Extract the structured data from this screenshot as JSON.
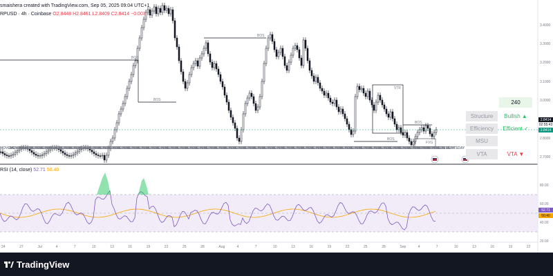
{
  "header": {
    "title": "smaishera created with TradingView.com, Sep 05, 2025 09:04 UTC+1",
    "symbol": "RPUSD · 4h · Coinbase",
    "ohlc": "O2.8448 H2.8461 L2.8409 C2.8414 −0.003"
  },
  "price_axis": {
    "labels": [
      "3.4000",
      "3.3000",
      "3.2000",
      "3.1000",
      "3.0000",
      "2.9000",
      "2.8000",
      "2.7000"
    ],
    "last_price": "2.8414",
    "countdown": "02:55:43",
    "last_price2": "2.8414"
  },
  "time_axis": {
    "labels": [
      "24",
      "27",
      "Jul",
      "4",
      "7",
      "10",
      "13",
      "16",
      "19",
      "22",
      "25",
      "28",
      "Aug",
      "4",
      "7",
      "10",
      "13",
      "16",
      "19",
      "22",
      "25",
      "28",
      "Sep",
      "4",
      "7",
      "10",
      "13",
      "16",
      "19",
      "22"
    ]
  },
  "annotations": {
    "bos_labels": [
      "BOS",
      "BOS",
      "BOS",
      "BOS",
      "BOS"
    ],
    "vtr_label": "VTR",
    "fvg_label": "FVG",
    "moves_row_text": "MOVEMENTSDAY"
  },
  "side_panel": {
    "timeframe": "240",
    "rows": [
      {
        "label": "Structure",
        "value": "Bullish ▲",
        "color": "#22c55e"
      },
      {
        "label": "Efficiency",
        "value": "Efficient ✓",
        "color": "#22c55e"
      },
      {
        "label": "MSU",
        "value": "",
        "color": "#22c55e"
      },
      {
        "label": "VTA",
        "value": "VTA ▼",
        "color": "#f23645"
      }
    ]
  },
  "rsi": {
    "title": "RSI (14, close)",
    "rsi_value": "52.71",
    "ma_value": "50.40",
    "axis_labels": [
      "80.00",
      "60.00",
      "40.00",
      "20.00"
    ],
    "tag_rsi": "52.71",
    "tag_ma": "50.40"
  },
  "footer": {
    "brand": "TradingView"
  },
  "colors": {
    "candle": "#131722",
    "rsi_line": "#7e57c2",
    "rsi_ma": "#f7a600",
    "rsi_band": "#ede7f6",
    "bullish": "#22c55e",
    "bearish": "#f23645"
  }
}
